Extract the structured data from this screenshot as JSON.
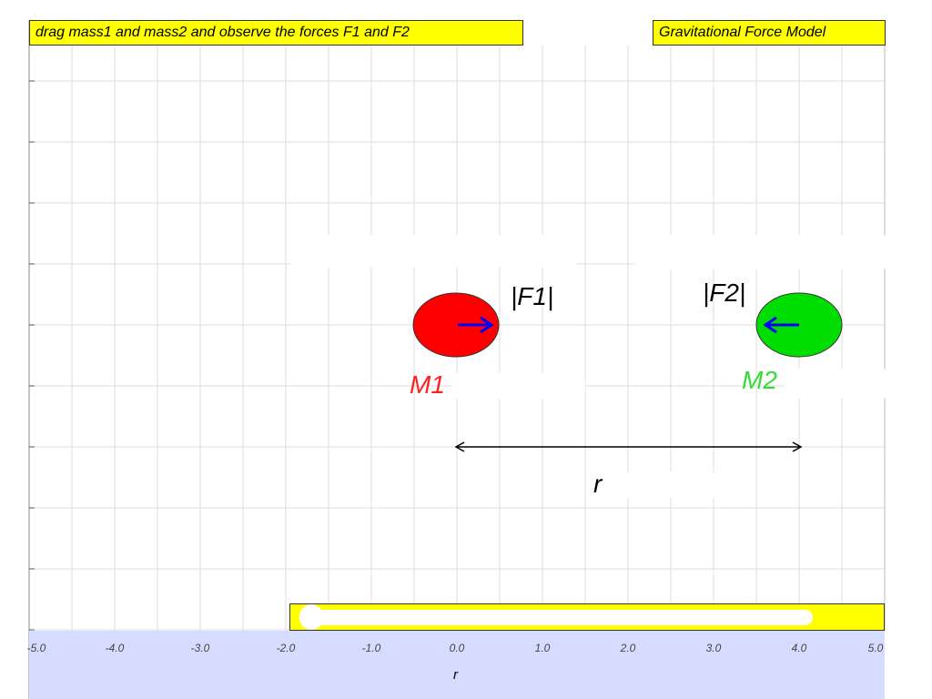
{
  "header": {
    "instruction": "drag mass1 and mass2 and observe the forces F1 and F2",
    "title": "Gravitational Force Model"
  },
  "labels": {
    "force1": "|F1|",
    "force2": "|F2|",
    "mass1": "M1",
    "mass2": "M2",
    "distance": "r",
    "xaxis": "r"
  },
  "colors": {
    "banner": "#ffff00",
    "mass1": "#ff0000",
    "mass2": "#00dd00",
    "force_arrow": "#0000ff",
    "axis_panel": "#d6dcff",
    "grid": "#dddddd"
  },
  "icons": {
    "force1_arrow": "right-arrow",
    "force2_arrow": "left-arrow",
    "distance_arrow": "double-headed-arrow"
  },
  "axis": {
    "xlim": [
      -5.0,
      5.0
    ],
    "ticks": [
      "-5.0",
      "-4.0",
      "-3.0",
      "-2.0",
      "-1.0",
      "0.0",
      "1.0",
      "2.0",
      "3.0",
      "4.0",
      "5.0"
    ]
  },
  "masses": {
    "m1_x": 0.0,
    "m2_x": 4.0
  }
}
